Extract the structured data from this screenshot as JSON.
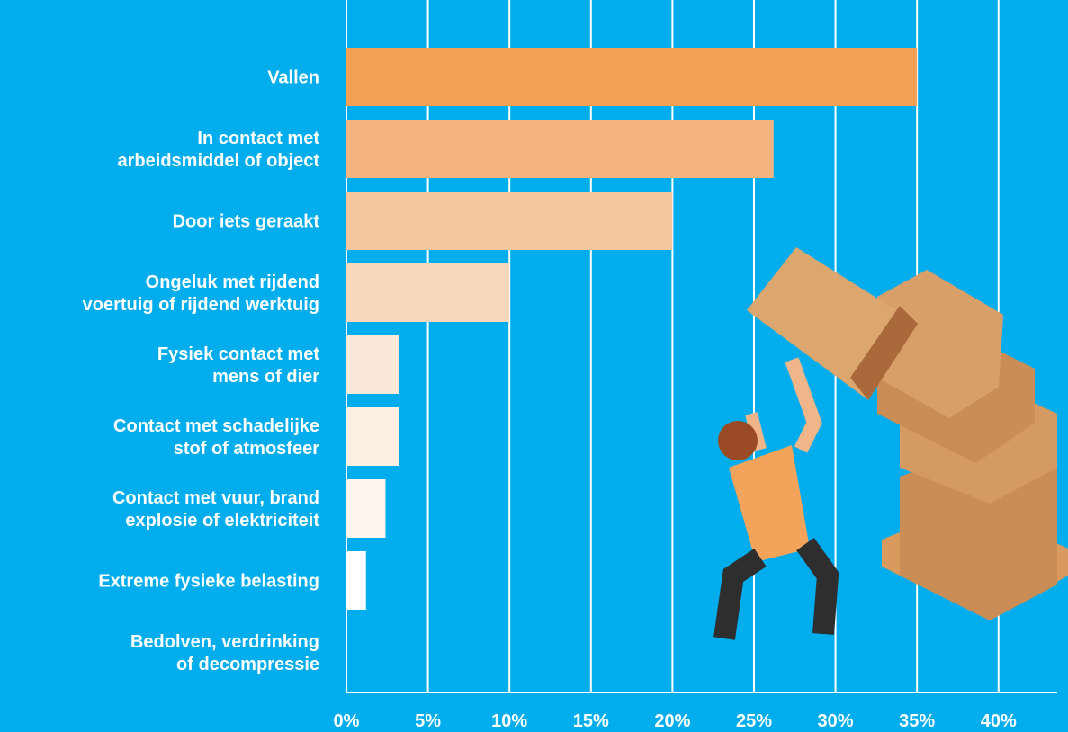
{
  "chart_data": {
    "type": "hbar",
    "categories": [
      "Vallen",
      "In contact met\narbeidsmiddel of object",
      "Door iets geraakt",
      "Ongeluk met rijdend\nvoertuig of rijdend werktuig",
      "Fysiek contact met\nmens of dier",
      "Contact met schadelijke\nstof of atmosfeer",
      "Contact met vuur, brand\nexplosie of elektriciteit",
      "Extreme fysieke belasting",
      "Bedolven, verdrinking\nof decompressie"
    ],
    "values": [
      35,
      26.2,
      20,
      10,
      3.2,
      3.2,
      2.4,
      1.2,
      0
    ],
    "colors": [
      "#f2a154",
      "#f3b480",
      "#f5c69e",
      "#f8d8bb",
      "#fae8d8",
      "#fcefe4",
      "#fdf4ec",
      "#ffffff",
      "#ffffff"
    ],
    "xlim": [
      0,
      43.6
    ],
    "xticks": [
      {
        "value": 0,
        "label": "0%"
      },
      {
        "value": 5,
        "label": "5%"
      },
      {
        "value": 10,
        "label": "10%"
      },
      {
        "value": 15,
        "label": "15%"
      },
      {
        "value": 20,
        "label": "20%"
      },
      {
        "value": 25,
        "label": "25%"
      },
      {
        "value": 30,
        "label": "30%"
      },
      {
        "value": 35,
        "label": "35%"
      },
      {
        "value": 40,
        "label": "40%"
      }
    ],
    "grid": true
  }
}
